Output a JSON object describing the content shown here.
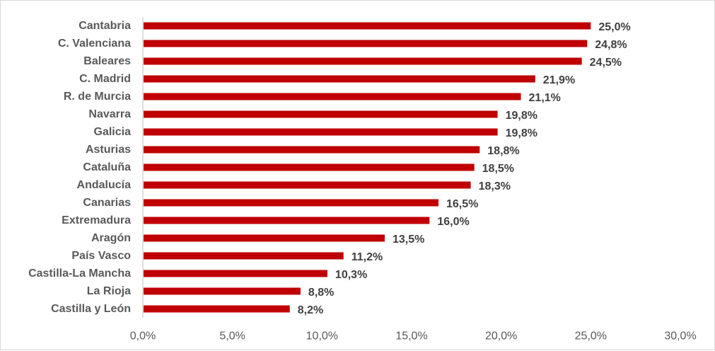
{
  "chart_data": {
    "type": "bar",
    "orientation": "horizontal",
    "title": "",
    "xlabel": "",
    "ylabel": "",
    "categories": [
      "Cantabria",
      "C. Valenciana",
      "Baleares",
      "C. Madrid",
      "R. de Murcia",
      "Navarra",
      "Galicia",
      "Asturias",
      "Cataluña",
      "Andalucía",
      "Canarias",
      "Extremadura",
      "Aragón",
      "País Vasco",
      "Castilla-La Mancha",
      "La Rioja",
      "Castilla y León"
    ],
    "values": [
      25.0,
      24.8,
      24.5,
      21.9,
      21.1,
      19.8,
      19.8,
      18.8,
      18.5,
      18.3,
      16.5,
      16.0,
      13.5,
      11.2,
      10.3,
      8.8,
      8.2
    ],
    "value_labels": [
      "25,0%",
      "24,8%",
      "24,5%",
      "21,9%",
      "21,1%",
      "19,8%",
      "19,8%",
      "18,8%",
      "18,5%",
      "18,3%",
      "16,5%",
      "16,0%",
      "13,5%",
      "11,2%",
      "10,3%",
      "8,8%",
      "8,2%"
    ],
    "xlim": [
      0,
      30
    ],
    "xticks": [
      0,
      5,
      10,
      15,
      20,
      25,
      30
    ],
    "xtick_labels": [
      "0,0%",
      "5,0%",
      "10,0%",
      "15,0%",
      "20,0%",
      "25,0%",
      "30,0%"
    ],
    "grid": false,
    "legend": "none",
    "bar_color": "#C00000"
  }
}
